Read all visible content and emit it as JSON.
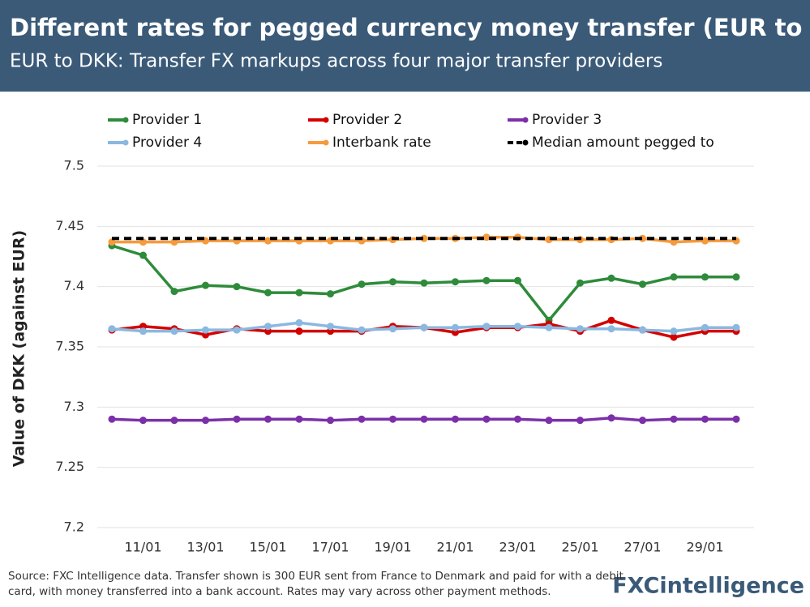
{
  "chart_data": {
    "type": "line",
    "title": "Different rates for pegged currency money transfer (EUR to DKK)",
    "subtitle": "EUR to DKK: Transfer FX markups across four major transfer providers",
    "y_label": "Value of DKK (against EUR)",
    "categories": [
      null,
      "11/01",
      null,
      "13/01",
      null,
      "15/01",
      null,
      "17/01",
      null,
      "19/01",
      null,
      "21/01",
      null,
      "23/01",
      null,
      "25/01",
      null,
      "27/01",
      null,
      "29/01",
      null
    ],
    "ylim": [
      7.2,
      7.5
    ],
    "yticks": [
      7.2,
      7.25,
      7.3,
      7.35,
      7.4,
      7.45,
      7.5
    ],
    "grid": true,
    "series": [
      {
        "name": "Provider 1",
        "color": "#2e8b3a",
        "style": "solid",
        "markers": true,
        "values": [
          7.434,
          7.426,
          7.396,
          7.401,
          7.4,
          7.395,
          7.395,
          7.394,
          7.402,
          7.404,
          7.403,
          7.404,
          7.405,
          7.405,
          7.372,
          7.403,
          7.407,
          7.402,
          7.408,
          7.408,
          7.408
        ]
      },
      {
        "name": "Provider 2",
        "color": "#d40000",
        "style": "solid",
        "markers": true,
        "values": [
          7.364,
          7.367,
          7.365,
          7.36,
          7.365,
          7.363,
          7.363,
          7.363,
          7.363,
          7.367,
          7.366,
          7.362,
          7.366,
          7.366,
          7.369,
          7.363,
          7.372,
          7.364,
          7.358,
          7.363,
          7.363
        ]
      },
      {
        "name": "Provider 3",
        "color": "#7b2fa8",
        "style": "solid",
        "markers": true,
        "values": [
          7.29,
          7.289,
          7.289,
          7.289,
          7.29,
          7.29,
          7.29,
          7.289,
          7.29,
          7.29,
          7.29,
          7.29,
          7.29,
          7.29,
          7.289,
          7.289,
          7.291,
          7.289,
          7.29,
          7.29,
          7.29
        ]
      },
      {
        "name": "Provider 4",
        "color": "#8ab8e0",
        "style": "solid",
        "markers": true,
        "values": [
          7.365,
          7.363,
          7.363,
          7.364,
          7.364,
          7.367,
          7.37,
          7.367,
          7.364,
          7.365,
          7.366,
          7.366,
          7.367,
          7.367,
          7.366,
          7.365,
          7.365,
          7.364,
          7.363,
          7.366,
          7.366
        ]
      },
      {
        "name": "Interbank rate",
        "color": "#f79a3c",
        "style": "solid",
        "markers": true,
        "values": [
          7.437,
          7.437,
          7.437,
          7.438,
          7.438,
          7.438,
          7.438,
          7.438,
          7.438,
          7.439,
          7.44,
          7.44,
          7.441,
          7.441,
          7.439,
          7.439,
          7.439,
          7.44,
          7.437,
          7.438,
          7.438
        ]
      },
      {
        "name": "Median amount pegged to",
        "color": "#000000",
        "style": "dashed",
        "markers": false,
        "values": [
          7.44,
          7.44,
          7.44,
          7.44,
          7.44,
          7.44,
          7.44,
          7.44,
          7.44,
          7.44,
          7.44,
          7.44,
          7.44,
          7.44,
          7.44,
          7.44,
          7.44,
          7.44,
          7.44,
          7.44,
          7.44
        ]
      }
    ]
  },
  "source": "Source: FXC Intelligence data. Transfer shown is 300 EUR sent from France to Denmark and paid for with a debit card, with money transferred into a bank account. Rates may vary across other payment methods.",
  "logo": "FXCintelligence"
}
